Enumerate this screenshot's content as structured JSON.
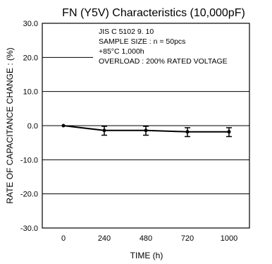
{
  "chart_data": {
    "type": "line",
    "title": "FN (Y5V) Characteristics (10,000pF)",
    "xlabel": "TIME  (h)",
    "ylabel": "RATE OF CAPACITANCE CHANGE : (%)",
    "categories": [
      "0",
      "240",
      "480",
      "720",
      "1000"
    ],
    "y_ticks": [
      "30.0",
      "20.0",
      "10.0",
      "0.0",
      "-10.0",
      "-20.0",
      "-30.0"
    ],
    "ylim": [
      -30,
      30
    ],
    "grid": "horizontal",
    "notes": [
      "JIS C 5102 9. 10",
      "SAMPLE SIZE : n = 50pcs",
      "+85°C 1,000h",
      "OVERLOAD : 200% RATED VOLTAGE"
    ],
    "series": [
      {
        "values": [
          0.0,
          -1.4,
          -1.4,
          -1.8,
          -1.8
        ],
        "error_low": [
          0.0,
          -2.8,
          -2.8,
          -3.2,
          -3.2
        ],
        "error_high": [
          0.0,
          -0.2,
          -0.2,
          -0.6,
          -0.6
        ]
      }
    ]
  }
}
